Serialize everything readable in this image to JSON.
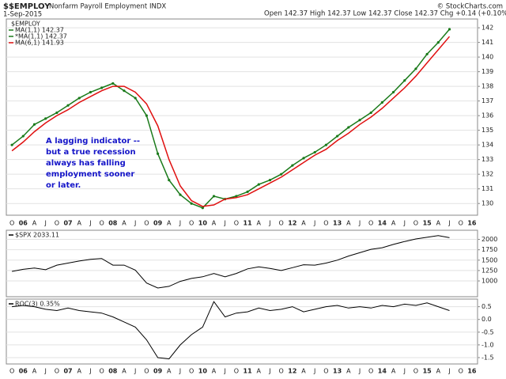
{
  "header": {
    "symbol": "$$EMPLOY",
    "name": "Nonfarm Payroll Employment  INDX",
    "date": "1-Sep-2015",
    "quote": "Open 142.37  High 142.37  Low 142.37  Close 142.37  Chg +0.14 (+0.10%)",
    "credit": "© StockCharts.com"
  },
  "chart_data": [
    {
      "type": "line",
      "legend_title": "$EMPLOY",
      "categories": [
        "O",
        "06",
        "A",
        "J",
        "O",
        "07",
        "A",
        "J",
        "O",
        "08",
        "A",
        "J",
        "O",
        "09",
        "A",
        "J",
        "O",
        "10",
        "A",
        "J",
        "O",
        "11",
        "A",
        "J",
        "O",
        "12",
        "A",
        "J",
        "O",
        "13",
        "A",
        "J",
        "O",
        "14",
        "A",
        "J",
        "O",
        "15",
        "A",
        "J",
        "O",
        "16"
      ],
      "series": [
        {
          "name": "MA(1,1) 142.37",
          "color": "#1a7a1a",
          "style": "line",
          "values": [
            134.0,
            134.6,
            135.4,
            135.8,
            136.2,
            136.7,
            137.2,
            137.6,
            137.9,
            138.2,
            137.7,
            137.2,
            136.0,
            133.4,
            131.6,
            130.6,
            130.0,
            129.7,
            130.5,
            130.3,
            130.5,
            130.8,
            131.3,
            131.6,
            132.0,
            132.6,
            133.1,
            133.5,
            134.0,
            134.6,
            135.2,
            135.7,
            136.2,
            136.9,
            137.6,
            138.4,
            139.2,
            140.2,
            141.0,
            141.9,
            null,
            null
          ]
        },
        {
          "name": "*MA(1,1) 142.37",
          "color": "#1a7a1a",
          "style": "dots",
          "values": [
            134.0,
            134.6,
            135.4,
            135.8,
            136.2,
            136.7,
            137.2,
            137.6,
            137.9,
            138.2,
            137.7,
            137.2,
            136.0,
            133.4,
            131.6,
            130.6,
            130.0,
            129.7,
            130.5,
            130.3,
            130.5,
            130.8,
            131.3,
            131.6,
            132.0,
            132.6,
            133.1,
            133.5,
            134.0,
            134.6,
            135.2,
            135.7,
            136.2,
            136.9,
            137.6,
            138.4,
            139.2,
            140.2,
            141.0,
            141.9,
            null,
            null
          ]
        },
        {
          "name": "MA(6,1) 141.93",
          "color": "#e01010",
          "style": "line",
          "values": [
            133.6,
            134.2,
            134.9,
            135.5,
            136.0,
            136.4,
            136.9,
            137.3,
            137.7,
            138.0,
            138.0,
            137.6,
            136.8,
            135.3,
            133.0,
            131.2,
            130.2,
            129.8,
            129.9,
            130.3,
            130.4,
            130.6,
            131.0,
            131.4,
            131.8,
            132.3,
            132.8,
            133.3,
            133.7,
            134.3,
            134.8,
            135.4,
            135.9,
            136.5,
            137.2,
            137.9,
            138.7,
            139.6,
            140.5,
            141.4,
            null,
            null
          ]
        }
      ],
      "ylim": [
        129.2,
        142.6
      ],
      "yticks": [
        130,
        131,
        132,
        133,
        134,
        135,
        136,
        137,
        138,
        139,
        140,
        141,
        142
      ],
      "grid": true,
      "annotation": [
        "A lagging indicator --",
        "but a true recession",
        "always has falling",
        "employment sooner",
        "or later."
      ]
    },
    {
      "type": "line",
      "series": [
        {
          "name": "$SPX 2033.11",
          "color": "#000000",
          "style": "line",
          "values": [
            1230,
            1280,
            1310,
            1270,
            1380,
            1430,
            1480,
            1520,
            1540,
            1380,
            1380,
            1260,
            950,
            830,
            870,
            990,
            1060,
            1100,
            1180,
            1100,
            1180,
            1290,
            1340,
            1300,
            1250,
            1320,
            1390,
            1380,
            1430,
            1500,
            1600,
            1680,
            1760,
            1800,
            1880,
            1950,
            2010,
            2050,
            2090,
            2040,
            null,
            null
          ]
        }
      ],
      "ylim": [
        620,
        2220
      ],
      "yticks": [
        1000,
        1250,
        1500,
        1750,
        2000
      ],
      "grid": true
    },
    {
      "type": "line",
      "categories": [
        "O",
        "06",
        "A",
        "J",
        "O",
        "07",
        "A",
        "J",
        "O",
        "08",
        "A",
        "J",
        "O",
        "09",
        "A",
        "J",
        "O",
        "10",
        "A",
        "J",
        "O",
        "11",
        "A",
        "J",
        "O",
        "12",
        "A",
        "J",
        "O",
        "13",
        "A",
        "J",
        "O",
        "14",
        "A",
        "J",
        "O",
        "15",
        "A",
        "J",
        "O",
        "16"
      ],
      "series": [
        {
          "name": "ROC(3) 0.35%",
          "color": "#000000",
          "style": "line",
          "values": [
            0.5,
            0.55,
            0.5,
            0.4,
            0.35,
            0.45,
            0.35,
            0.3,
            0.25,
            0.1,
            -0.1,
            -0.3,
            -0.8,
            -1.5,
            -1.55,
            -1.0,
            -0.6,
            -0.3,
            0.7,
            0.1,
            0.25,
            0.3,
            0.45,
            0.35,
            0.4,
            0.5,
            0.3,
            0.4,
            0.5,
            0.55,
            0.45,
            0.5,
            0.45,
            0.55,
            0.5,
            0.6,
            0.55,
            0.65,
            0.5,
            0.35,
            null,
            null
          ]
        }
      ],
      "ylim": [
        -1.75,
        0.8
      ],
      "yticks": [
        0.5,
        {
          "value": 0,
          "label": "0.0"
        },
        {
          "value": -0.5,
          "label": "-0.5"
        },
        {
          "value": -1,
          "label": "-1.0"
        },
        {
          "value": -1.5,
          "label": "-1.5"
        }
      ],
      "grid": true
    }
  ]
}
